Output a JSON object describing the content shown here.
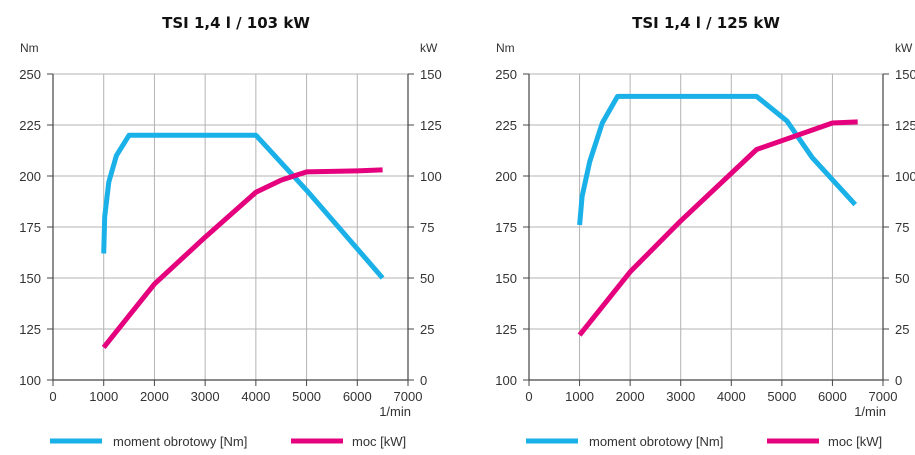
{
  "colors": {
    "torque": "#1ab0e8",
    "power": "#e5007d",
    "grid": "#b3b3b3",
    "axis": "#444444"
  },
  "legend": {
    "torque": "moment obrotowy [Nm]",
    "power": "moc [kW]"
  },
  "chart_data": [
    {
      "type": "line",
      "title": "TSI 1,4 l / 103 kW",
      "ylabel_left": "Nm",
      "ylabel_right": "kW",
      "xunit": "1/min",
      "xlim": [
        0,
        7000
      ],
      "ylim_left": [
        100,
        250
      ],
      "ylim_right": [
        0,
        150
      ],
      "xticks": [
        "0",
        "1000",
        "2000",
        "3000",
        "4000",
        "5000",
        "6000",
        "7000"
      ],
      "yticks_left": [
        "100",
        "125",
        "150",
        "175",
        "200",
        "225",
        "250"
      ],
      "yticks_right": [
        "0",
        "25",
        "50",
        "75",
        "100",
        "125",
        "150"
      ],
      "grid": true,
      "series": [
        {
          "name": "moment obrotowy [Nm]",
          "axis": "left",
          "x": [
            1000,
            1020,
            1100,
            1250,
            1500,
            4000,
            5000,
            6500
          ],
          "y": [
            162,
            180,
            197,
            210,
            220,
            220,
            193,
            150
          ]
        },
        {
          "name": "moc [kW]",
          "axis": "right",
          "x": [
            1000,
            2000,
            3000,
            4000,
            4500,
            5000,
            6000,
            6500
          ],
          "y": [
            16,
            47,
            70,
            92,
            98,
            102,
            102.5,
            103
          ]
        }
      ]
    },
    {
      "type": "line",
      "title": "TSI 1,4 l / 125 kW",
      "ylabel_left": "Nm",
      "ylabel_right": "kW",
      "xunit": "1/min",
      "xlim": [
        0,
        7000
      ],
      "ylim_left": [
        100,
        250
      ],
      "ylim_right": [
        0,
        150
      ],
      "xticks": [
        "0",
        "1000",
        "2000",
        "3000",
        "4000",
        "5000",
        "6000",
        "7000"
      ],
      "yticks_left": [
        "100",
        "125",
        "150",
        "175",
        "200",
        "225",
        "250"
      ],
      "yticks_right": [
        "0",
        "25",
        "50",
        "75",
        "100",
        "125",
        "150"
      ],
      "grid": true,
      "series": [
        {
          "name": "moment obrotowy [Nm]",
          "axis": "left",
          "x": [
            1000,
            1050,
            1200,
            1450,
            1750,
            4500,
            5100,
            5600,
            6450
          ],
          "y": [
            176,
            190,
            207,
            226,
            239,
            239,
            227,
            209,
            186
          ]
        },
        {
          "name": "moc [kW]",
          "axis": "right",
          "x": [
            1000,
            2000,
            3000,
            4500,
            6000,
            6500
          ],
          "y": [
            22,
            53,
            78,
            113,
            126,
            126.5
          ]
        }
      ]
    }
  ]
}
